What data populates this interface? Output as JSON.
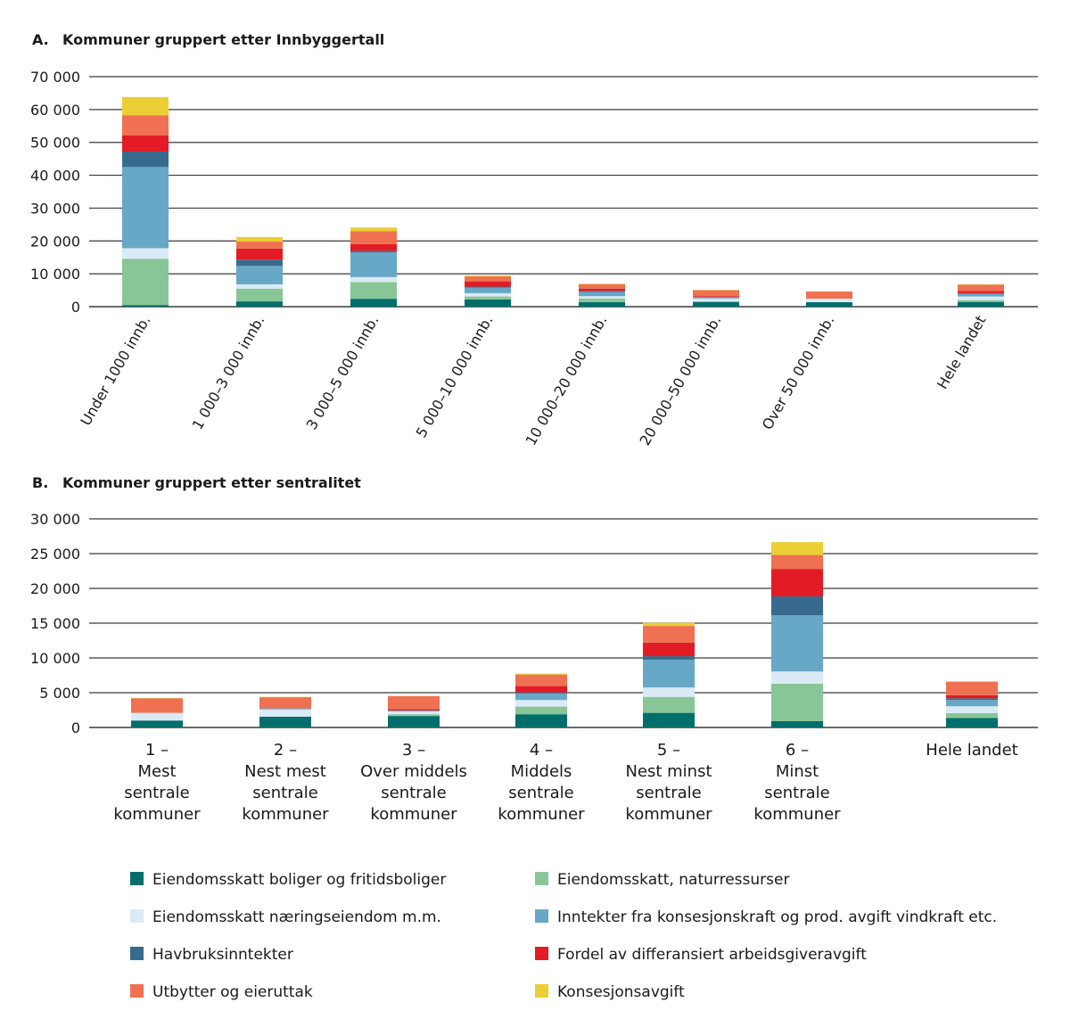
{
  "chart_data": [
    {
      "type": "bar",
      "stacked": true,
      "title_letter": "A.",
      "title": "Kommuner gruppert etter Innbyggertall",
      "ylim": [
        0,
        70000
      ],
      "yticks": [
        "0",
        "10 000",
        "20 000",
        "30 000",
        "40 000",
        "50 000",
        "60 000",
        "70 000"
      ],
      "grid": true,
      "categories": [
        "Under 1000 innb.",
        "1 000–3 000 innb.",
        "3 000–5 000 innb.",
        "5 000–10 000 innb.",
        "10 000–20 000 innb.",
        "20 000–50 000 innb.",
        "Over 50 000 innb.",
        "Hele landet"
      ],
      "series": [
        {
          "name": "Eiendomsskatt boliger og fritidsboliger",
          "values": [
            500,
            1600,
            2400,
            2200,
            1350,
            1450,
            1350,
            1450
          ]
        },
        {
          "name": "Eiendomsskatt, naturressurser",
          "values": [
            14100,
            3900,
            5100,
            900,
            1150,
            150,
            50,
            550
          ]
        },
        {
          "name": "Eiendomsskatt næringseiendom m.m.",
          "values": [
            3200,
            1300,
            1500,
            1000,
            700,
            900,
            1000,
            1100
          ]
        },
        {
          "name": "Inntekter fra konsesjonskraft og prod. avgift vindkraft etc.",
          "values": [
            24700,
            5600,
            7500,
            1700,
            1300,
            300,
            50,
            800
          ]
        },
        {
          "name": "Havbruksinntekter",
          "values": [
            4700,
            1900,
            500,
            300,
            300,
            100,
            0,
            200
          ]
        },
        {
          "name": "Fordel av differansiert arbeidsgiveravgift",
          "values": [
            4900,
            3400,
            2000,
            1600,
            700,
            300,
            50,
            700
          ]
        },
        {
          "name": "Utbytter og eieruttak",
          "values": [
            6100,
            2100,
            4000,
            1500,
            1300,
            1800,
            2100,
            1900
          ]
        },
        {
          "name": "Konsesjonsavgift",
          "values": [
            5600,
            1400,
            1100,
            300,
            200,
            100,
            50,
            150
          ]
        }
      ]
    },
    {
      "type": "bar",
      "stacked": true,
      "title_letter": "B.",
      "title": "Kommuner gruppert etter sentralitet",
      "ylim": [
        0,
        30000
      ],
      "yticks": [
        "0",
        "5 000",
        "10 000",
        "15 000",
        "20 000",
        "25 000",
        "30 000"
      ],
      "grid": true,
      "categories": [
        [
          "1 –",
          "Mest",
          "sentrale",
          "kommuner"
        ],
        [
          "2 –",
          "Nest mest",
          "sentrale",
          "kommuner"
        ],
        [
          "3 –",
          "Over middels",
          "sentrale",
          "kommuner"
        ],
        [
          "4 –",
          "Middels",
          "sentrale",
          "kommuner"
        ],
        [
          "5 –",
          "Nest minst",
          "sentrale",
          "kommuner"
        ],
        [
          "6 –",
          "Minst",
          "sentrale",
          "kommuner"
        ],
        [
          "Hele landet"
        ]
      ],
      "series": [
        {
          "name": "Eiendomsskatt boliger og fritidsboliger",
          "values": [
            1000,
            1550,
            1650,
            1900,
            2100,
            900,
            1350
          ]
        },
        {
          "name": "Eiendomsskatt, naturressurser",
          "values": [
            0,
            0,
            250,
            1100,
            2300,
            5400,
            700
          ]
        },
        {
          "name": "Eiendomsskatt næringseiendom m.m.",
          "values": [
            1100,
            1050,
            400,
            950,
            1350,
            1750,
            1000
          ]
        },
        {
          "name": "Inntekter fra konsesjonskraft og prod. avgift vindkraft etc.",
          "values": [
            0,
            150,
            150,
            950,
            4000,
            8100,
            900
          ]
        },
        {
          "name": "Havbruksinntekter",
          "values": [
            0,
            0,
            0,
            150,
            500,
            2700,
            250
          ]
        },
        {
          "name": "Fordel av differansiert arbeidsgiveravgift",
          "values": [
            0,
            0,
            200,
            900,
            1950,
            3950,
            450
          ]
        },
        {
          "name": "Utbytter og eieruttak",
          "values": [
            2100,
            1600,
            1850,
            1650,
            2400,
            2000,
            1900
          ]
        },
        {
          "name": "Konsesjonsavgift",
          "values": [
            50,
            50,
            50,
            150,
            450,
            1850,
            100
          ]
        }
      ]
    }
  ],
  "legend": {
    "placement": "bottom",
    "items": [
      {
        "label": "Eiendomsskatt boliger og fritidsboliger",
        "color": "#006e6a"
      },
      {
        "label": "Eiendomsskatt, naturressurser",
        "color": "#88c697"
      },
      {
        "label": "Eiendomsskatt næringseiendom m.m.",
        "color": "#dbeaf7"
      },
      {
        "label": "Inntekter fra konsesjonskraft og prod. avgift vindkraft etc.",
        "color": "#67a8c7"
      },
      {
        "label": "Havbruksinntekter",
        "color": "#386a8e"
      },
      {
        "label": "Fordel av differansiert arbeidsgiveravgift",
        "color": "#e31b25"
      },
      {
        "label": "Utbytter og eieruttak",
        "color": "#ef7152"
      },
      {
        "label": "Konsesjonsavgift",
        "color": "#ecce35"
      }
    ]
  }
}
